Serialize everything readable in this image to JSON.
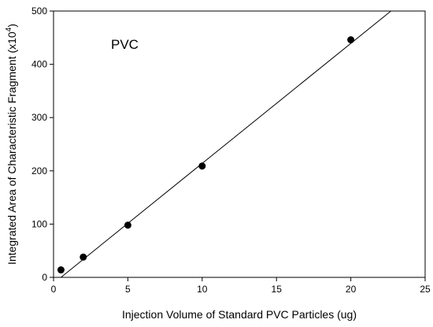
{
  "chart_data": {
    "type": "scatter",
    "title": "",
    "annotation": "PVC",
    "xlabel": "Injection Volume of Standard PVC Particles (ug)",
    "ylabel_main": "Integrated Area of Characteristic Fragment (x10",
    "ylabel_sup": "4",
    "ylabel_end": ")",
    "xlim": [
      0,
      25
    ],
    "ylim": [
      0,
      500
    ],
    "xticks": [
      0,
      5,
      10,
      15,
      20,
      25
    ],
    "yticks": [
      0,
      100,
      200,
      300,
      400,
      500
    ],
    "grid": false,
    "points": [
      {
        "x": 0.5,
        "y": 14
      },
      {
        "x": 2,
        "y": 38
      },
      {
        "x": 5,
        "y": 98
      },
      {
        "x": 10,
        "y": 209
      },
      {
        "x": 20,
        "y": 446
      }
    ],
    "fit_line": {
      "x": [
        0.5,
        22.7
      ],
      "y": [
        0,
        500
      ]
    }
  }
}
